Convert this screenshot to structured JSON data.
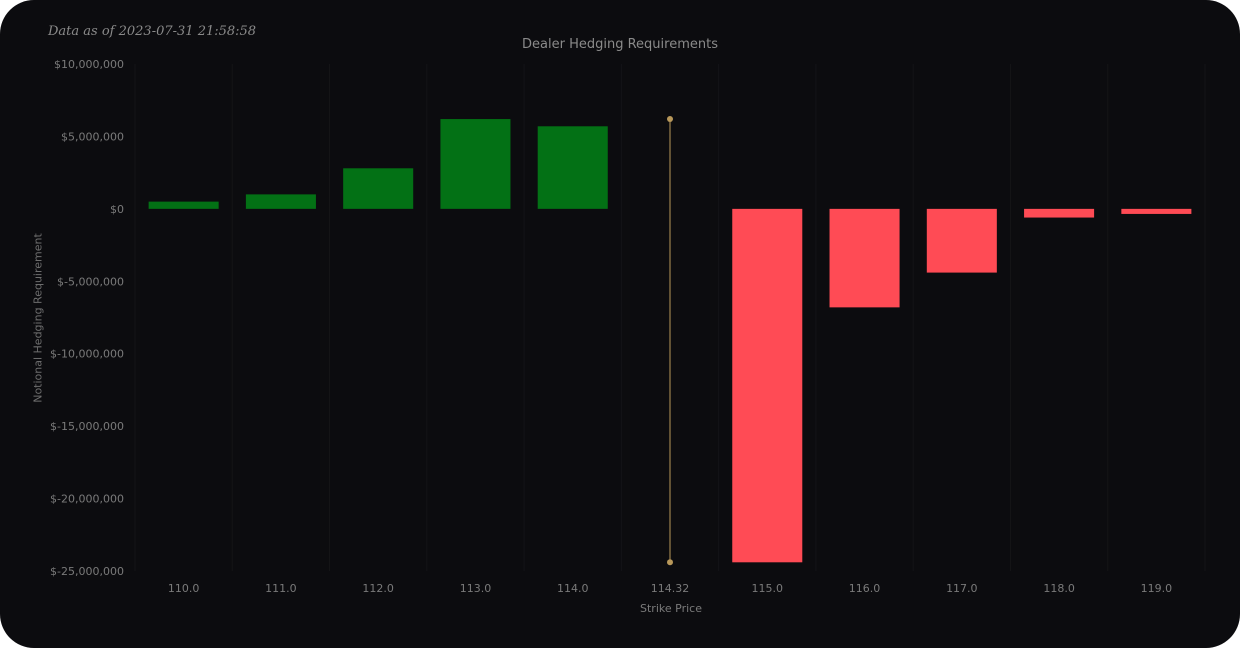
{
  "as_of_text": "Data as of 2023-07-31 21:58:58",
  "chart_data": {
    "type": "bar",
    "title": "Dealer Hedging Requirements",
    "xlabel": "Strike Price",
    "ylabel": "Notional Hedging Requirement",
    "categories": [
      "110.0",
      "111.0",
      "112.0",
      "113.0",
      "114.0",
      "114.32",
      "115.0",
      "116.0",
      "117.0",
      "118.0",
      "119.0"
    ],
    "values": [
      500000,
      1000000,
      2800000,
      6200000,
      5700000,
      null,
      -24400000,
      -6800000,
      -4400000,
      -600000,
      -350000
    ],
    "ylim": [
      -25000000,
      10000000
    ],
    "yticks": [
      10000000,
      5000000,
      0,
      -5000000,
      -10000000,
      -15000000,
      -20000000,
      -25000000
    ],
    "ytick_labels": [
      "$10,000,000",
      "$5,000,000",
      "$0",
      "$-5,000,000",
      "$-10,000,000",
      "$-15,000,000",
      "$-20,000,000",
      "$-25,000,000"
    ],
    "spot_marker": {
      "category": "114.32",
      "y_top": 6200000,
      "y_bottom": -24400000,
      "color": "#b8985a"
    },
    "colors": {
      "positive": "#037115",
      "negative": "#ff4b55",
      "grid": "#141417",
      "tick_text": "#7a7a7a"
    },
    "grid": true,
    "legend": "none"
  }
}
